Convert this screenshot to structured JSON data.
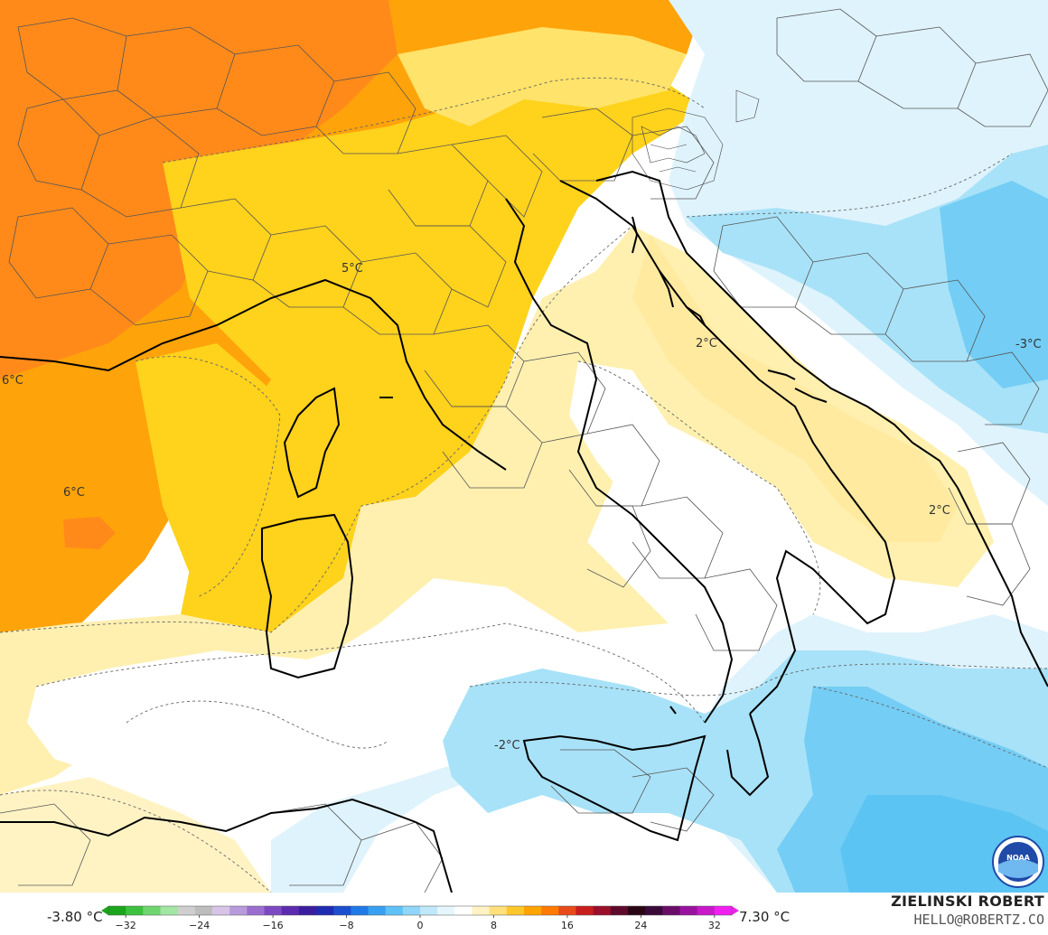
{
  "map": {
    "contour_labels": [
      {
        "text": "5°C"
      },
      {
        "text": "6°C"
      },
      {
        "text": "6°C"
      },
      {
        "text": "2°C"
      },
      {
        "text": "-3°C"
      },
      {
        "text": "2°C"
      },
      {
        "text": "-2°C"
      }
    ]
  },
  "legend": {
    "min_label": "-3.80 °C",
    "max_label": "7.30 °C",
    "ticks": [
      "−32",
      "−24",
      "−16",
      "−8",
      "0",
      "8",
      "16",
      "24",
      "32"
    ],
    "colors": [
      "#1aa51a",
      "#3cc23c",
      "#6fd66f",
      "#a3e6a3",
      "#cfcfcf",
      "#bdbdbd",
      "#d8c4e8",
      "#b79bdc",
      "#9b6fd0",
      "#7d49c2",
      "#5c2cb0",
      "#3b1ea0",
      "#1f2bb0",
      "#1b4fd0",
      "#1f7ae8",
      "#38a0f2",
      "#5fc2f7",
      "#8fd6f9",
      "#bfe8fb",
      "#e6f6fd",
      "#ffffff",
      "#fff3c4",
      "#ffe07a",
      "#ffc72a",
      "#ffa400",
      "#ff7a00",
      "#e84a1a",
      "#c81e1e",
      "#9a0f2a",
      "#5e0a2a",
      "#2a0614",
      "#3a0a3a",
      "#6a0e6a",
      "#9a12a0",
      "#c818c8",
      "#f020f0"
    ]
  },
  "brand": {
    "name": "ZIELINSKI ROBERT",
    "email": "HELLO@ROBERTZ.CO"
  },
  "logo": {
    "icon": "noaa-logo",
    "text": "NOAA"
  }
}
